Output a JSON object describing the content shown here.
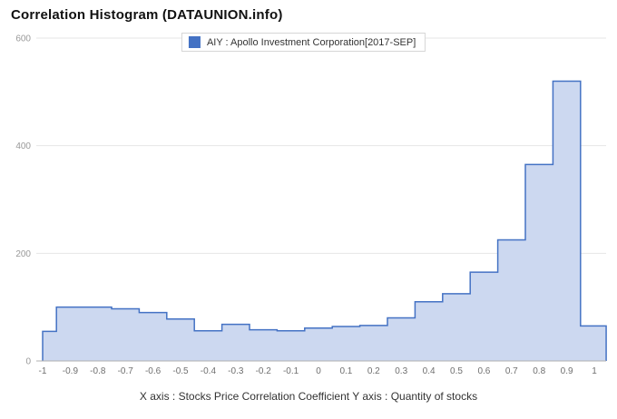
{
  "header": {
    "title": "Correlation Histogram (DATAUNION.info)"
  },
  "legend": {
    "label": "AIY : Apollo Investment Corporation[2017-SEP]",
    "color": "#4472c4"
  },
  "caption": "X axis : Stocks Price Correlation Coefficient  Y axis : Quantity of stocks",
  "chart_data": {
    "type": "area",
    "subtype": "step-histogram",
    "title": "Correlation Histogram (DATAUNION.info)",
    "series_name": "AIY : Apollo Investment Corporation[2017-SEP]",
    "xlabel": "Stocks Price Correlation Coefficient",
    "ylabel": "Quantity of stocks",
    "x": [
      -1,
      -0.9,
      -0.8,
      -0.7,
      -0.6,
      -0.5,
      -0.4,
      -0.3,
      -0.2,
      -0.1,
      0,
      0.1,
      0.2,
      0.3,
      0.4,
      0.5,
      0.6,
      0.7,
      0.8,
      0.9,
      1
    ],
    "values": [
      55,
      100,
      100,
      97,
      90,
      78,
      56,
      68,
      58,
      56,
      61,
      64,
      66,
      80,
      110,
      125,
      165,
      225,
      365,
      520,
      65
    ],
    "ylim": [
      0,
      600
    ],
    "yticks": [
      0,
      200,
      400,
      600
    ],
    "grid": "horizontal",
    "legend_position": "top-center",
    "colors": {
      "fill": "#ccd8f0",
      "stroke": "#4472c4",
      "grid": "#e6e6e6",
      "axis_line": "#b0b0b0",
      "y_tick_text": "#999999",
      "x_tick_text": "#6f6f6f"
    }
  }
}
